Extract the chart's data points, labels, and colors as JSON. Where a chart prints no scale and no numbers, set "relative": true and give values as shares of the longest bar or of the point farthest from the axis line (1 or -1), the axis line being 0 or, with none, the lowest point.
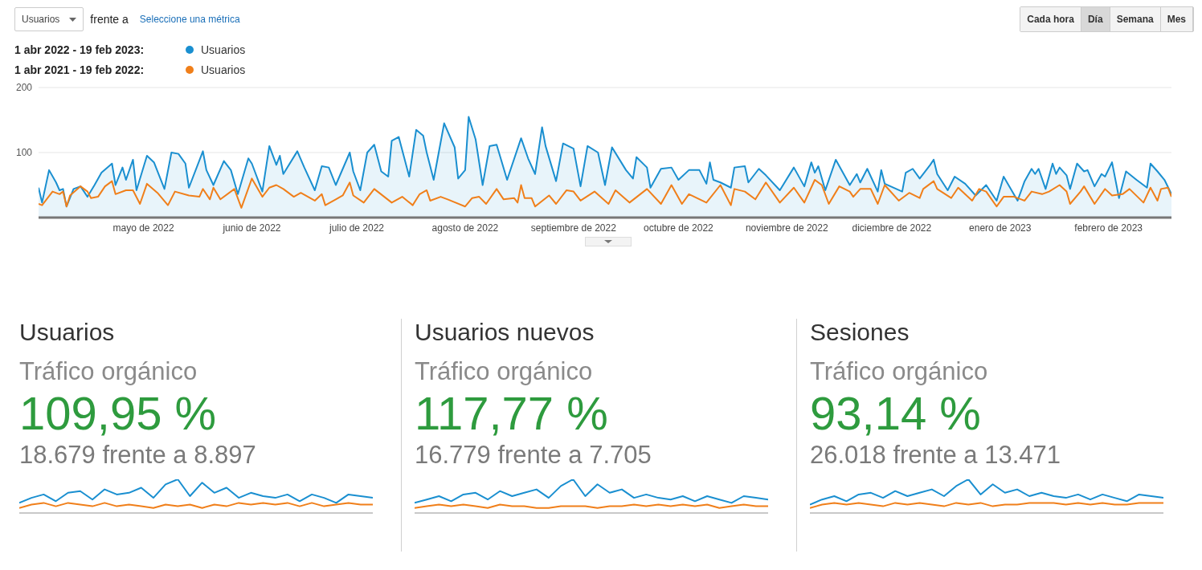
{
  "chart_data": [
    {
      "type": "line",
      "annotations": [
        "Usuarios",
        "frente a",
        "Seleccione una métrica",
        "Cada hora",
        "Día",
        "Semana",
        "Mes",
        "1 abr 2022 - 19 feb 2023:",
        "1 abr 2021 - 19 feb 2022:"
      ],
      "xlim": [
        "2022-04-01",
        "2023-02-19"
      ],
      "xticks": [
        {
          "value": "2022-05-01",
          "label": "mayo de 2022"
        },
        {
          "value": "2022-06-01",
          "label": "junio de 2022"
        },
        {
          "value": "2022-07-01",
          "label": "julio de 2022"
        },
        {
          "value": "2022-08-01",
          "label": "agosto de 2022"
        },
        {
          "value": "2022-09-01",
          "label": "septiembre de 2022"
        },
        {
          "value": "2022-10-01",
          "label": "octubre de 2022"
        },
        {
          "value": "2022-11-01",
          "label": "noviembre de 2022"
        },
        {
          "value": "2022-12-01",
          "label": "diciembre de 2022"
        },
        {
          "value": "2023-01-01",
          "label": "enero de 2023"
        },
        {
          "value": "2023-02-01",
          "label": "febrero de 2023"
        }
      ],
      "ylim": [
        0,
        200
      ],
      "yticks": [
        100,
        200
      ],
      "grid": "y",
      "legend": "top left",
      "series": [
        {
          "name": "Usuarios",
          "type": "area",
          "color": "#1a8fd0",
          "x": [
            "2022-04-01",
            "2022-04-02",
            "2022-04-04",
            "2022-04-06",
            "2022-04-07",
            "2022-04-08",
            "2022-04-09",
            "2022-04-11",
            "2022-04-13",
            "2022-04-15",
            "2022-04-17",
            "2022-04-19",
            "2022-04-22",
            "2022-04-23",
            "2022-04-25",
            "2022-04-26",
            "2022-04-28",
            "2022-04-29",
            "2022-05-02",
            "2022-05-04",
            "2022-05-07",
            "2022-05-09",
            "2022-05-11",
            "2022-05-13",
            "2022-05-14",
            "2022-05-18",
            "2022-05-19",
            "2022-05-21",
            "2022-05-24",
            "2022-05-26",
            "2022-05-28",
            "2022-05-31",
            "2022-06-01",
            "2022-06-04",
            "2022-06-06",
            "2022-06-08",
            "2022-06-09",
            "2022-06-10",
            "2022-06-14",
            "2022-06-16",
            "2022-06-19",
            "2022-06-21",
            "2022-06-23",
            "2022-06-25",
            "2022-06-29",
            "2022-06-30",
            "2022-07-02",
            "2022-07-04",
            "2022-07-06",
            "2022-07-08",
            "2022-07-10",
            "2022-07-11",
            "2022-07-13",
            "2022-07-16",
            "2022-07-18",
            "2022-07-20",
            "2022-07-21",
            "2022-07-23",
            "2022-07-26",
            "2022-07-29",
            "2022-07-30",
            "2022-08-01",
            "2022-08-02",
            "2022-08-04",
            "2022-08-06",
            "2022-08-08",
            "2022-08-10",
            "2022-08-13",
            "2022-08-17",
            "2022-08-19",
            "2022-08-21",
            "2022-08-23",
            "2022-08-24",
            "2022-08-27",
            "2022-08-29",
            "2022-09-01",
            "2022-09-03",
            "2022-09-05",
            "2022-09-08",
            "2022-09-10",
            "2022-09-12",
            "2022-09-16",
            "2022-09-18",
            "2022-09-19",
            "2022-09-22",
            "2022-09-23",
            "2022-09-26",
            "2022-09-29",
            "2022-10-01",
            "2022-10-04",
            "2022-10-07",
            "2022-10-09",
            "2022-10-10",
            "2022-10-11",
            "2022-10-13",
            "2022-10-16",
            "2022-10-17",
            "2022-10-20",
            "2022-10-21",
            "2022-10-24",
            "2022-10-26",
            "2022-10-30",
            "2022-11-03",
            "2022-11-06",
            "2022-11-08",
            "2022-11-09",
            "2022-11-10",
            "2022-11-12",
            "2022-11-15",
            "2022-11-19",
            "2022-11-21",
            "2022-11-22",
            "2022-11-24",
            "2022-11-27",
            "2022-11-28",
            "2022-11-29",
            "2022-12-04",
            "2022-12-05",
            "2022-12-07",
            "2022-12-09",
            "2022-12-12",
            "2022-12-13",
            "2022-12-14",
            "2022-12-17",
            "2022-12-19",
            "2022-12-22",
            "2022-12-25",
            "2022-12-28",
            "2022-12-31",
            "2023-01-02",
            "2023-01-06",
            "2023-01-08",
            "2023-01-10",
            "2023-01-11",
            "2023-01-12",
            "2023-01-14",
            "2023-01-16",
            "2023-01-17",
            "2023-01-18",
            "2023-01-20",
            "2023-01-21",
            "2023-01-23",
            "2023-01-25",
            "2023-01-26",
            "2023-01-28",
            "2023-01-30",
            "2023-01-31",
            "2023-02-02",
            "2023-02-04",
            "2023-02-06",
            "2023-02-09",
            "2023-02-12",
            "2023-02-13",
            "2023-02-15",
            "2023-02-17",
            "2023-02-19"
          ],
          "values": [
            46,
            23,
            73,
            54,
            42,
            44,
            17,
            44,
            48,
            32,
            50,
            69,
            83,
            50,
            77,
            58,
            89,
            42,
            95,
            85,
            44,
            100,
            98,
            83,
            46,
            102,
            73,
            50,
            87,
            73,
            36,
            91,
            83,
            40,
            110,
            81,
            95,
            67,
            102,
            77,
            42,
            79,
            77,
            50,
            100,
            71,
            42,
            100,
            112,
            71,
            63,
            118,
            124,
            63,
            135,
            126,
            100,
            58,
            145,
            108,
            60,
            73,
            155,
            120,
            50,
            110,
            112,
            58,
            122,
            91,
            67,
            139,
            110,
            56,
            114,
            106,
            48,
            110,
            100,
            50,
            108,
            73,
            60,
            93,
            77,
            46,
            75,
            77,
            58,
            73,
            73,
            52,
            85,
            58,
            54,
            46,
            77,
            79,
            54,
            75,
            65,
            42,
            77,
            48,
            85,
            69,
            79,
            42,
            89,
            50,
            67,
            54,
            75,
            40,
            73,
            52,
            40,
            69,
            75,
            60,
            81,
            89,
            67,
            42,
            63,
            52,
            34,
            50,
            26,
            63,
            26,
            56,
            75,
            67,
            75,
            44,
            83,
            67,
            77,
            65,
            44,
            83,
            71,
            73,
            48,
            67,
            63,
            85,
            30,
            71,
            58,
            46,
            83,
            71,
            58,
            36
          ]
        },
        {
          "name": "Usuarios",
          "color": "#f07f1a",
          "x": [
            "2022-04-01",
            "2022-04-02",
            "2022-04-05",
            "2022-04-07",
            "2022-04-08",
            "2022-04-09",
            "2022-04-10",
            "2022-04-13",
            "2022-04-15",
            "2022-04-16",
            "2022-04-18",
            "2022-04-20",
            "2022-04-22",
            "2022-04-23",
            "2022-04-26",
            "2022-04-28",
            "2022-04-30",
            "2022-05-02",
            "2022-05-05",
            "2022-05-08",
            "2022-05-10",
            "2022-05-14",
            "2022-05-17",
            "2022-05-18",
            "2022-05-20",
            "2022-05-21",
            "2022-05-23",
            "2022-05-27",
            "2022-05-29",
            "2022-06-01",
            "2022-06-04",
            "2022-06-06",
            "2022-06-08",
            "2022-06-10",
            "2022-06-13",
            "2022-06-15",
            "2022-06-19",
            "2022-06-21",
            "2022-06-22",
            "2022-06-25",
            "2022-06-27",
            "2022-06-29",
            "2022-06-30",
            "2022-07-03",
            "2022-07-06",
            "2022-07-11",
            "2022-07-14",
            "2022-07-17",
            "2022-07-19",
            "2022-07-21",
            "2022-07-22",
            "2022-07-25",
            "2022-07-27",
            "2022-08-01",
            "2022-08-03",
            "2022-08-05",
            "2022-08-07",
            "2022-08-10",
            "2022-08-12",
            "2022-08-15",
            "2022-08-16",
            "2022-08-17",
            "2022-08-18",
            "2022-08-20",
            "2022-08-21",
            "2022-08-25",
            "2022-08-27",
            "2022-08-30",
            "2022-09-01",
            "2022-09-03",
            "2022-09-07",
            "2022-09-11",
            "2022-09-13",
            "2022-09-17",
            "2022-09-22",
            "2022-09-26",
            "2022-09-29",
            "2022-10-02",
            "2022-10-04",
            "2022-10-09",
            "2022-10-13",
            "2022-10-16",
            "2022-10-17",
            "2022-10-20",
            "2022-10-23",
            "2022-10-26",
            "2022-10-30",
            "2022-11-03",
            "2022-11-06",
            "2022-11-09",
            "2022-11-11",
            "2022-11-13",
            "2022-11-16",
            "2022-11-19",
            "2022-11-20",
            "2022-11-22",
            "2022-11-25",
            "2022-11-27",
            "2022-11-29",
            "2022-12-03",
            "2022-12-06",
            "2022-12-09",
            "2022-12-10",
            "2022-12-13",
            "2022-12-14",
            "2022-12-18",
            "2022-12-20",
            "2022-12-24",
            "2022-12-26",
            "2022-12-28",
            "2022-12-31",
            "2023-01-02",
            "2023-01-05",
            "2023-01-08",
            "2023-01-10",
            "2023-01-13",
            "2023-01-15",
            "2023-01-18",
            "2023-01-20",
            "2023-01-21",
            "2023-01-24",
            "2023-01-25",
            "2023-01-28",
            "2023-01-31",
            "2023-02-02",
            "2023-02-05",
            "2023-02-06",
            "2023-02-07",
            "2023-02-11",
            "2023-02-13",
            "2023-02-15",
            "2023-02-16",
            "2023-02-18",
            "2023-02-19"
          ],
          "values": [
            21,
            19,
            40,
            36,
            40,
            17,
            34,
            48,
            40,
            30,
            32,
            48,
            56,
            36,
            42,
            42,
            21,
            52,
            38,
            19,
            40,
            34,
            32,
            44,
            28,
            46,
            28,
            44,
            15,
            60,
            32,
            46,
            50,
            44,
            32,
            38,
            26,
            36,
            19,
            28,
            34,
            54,
            34,
            23,
            44,
            23,
            32,
            19,
            36,
            42,
            26,
            32,
            28,
            17,
            30,
            32,
            21,
            44,
            28,
            30,
            23,
            50,
            30,
            30,
            17,
            34,
            21,
            42,
            40,
            26,
            40,
            21,
            42,
            23,
            44,
            21,
            50,
            21,
            36,
            23,
            50,
            19,
            44,
            40,
            28,
            54,
            23,
            46,
            23,
            58,
            50,
            21,
            48,
            40,
            32,
            44,
            44,
            21,
            50,
            26,
            38,
            30,
            44,
            56,
            44,
            30,
            46,
            26,
            44,
            40,
            17,
            32,
            32,
            26,
            40,
            36,
            40,
            50,
            40,
            21,
            40,
            48,
            21,
            44,
            34,
            36,
            40,
            44,
            23,
            46,
            26,
            44,
            46,
            32
          ]
        }
      ]
    },
    {
      "type": "line",
      "title": "Usuarios",
      "subtitle": "Tráfico orgánico",
      "annotations": [
        "109,95 %",
        "18.679 frente a 8.897"
      ],
      "relative": true,
      "categories": [
        null,
        null,
        null,
        null,
        null,
        null,
        null,
        null,
        null,
        null,
        null,
        null,
        null,
        null,
        null,
        null,
        null,
        null,
        null,
        null,
        null,
        null,
        null,
        null,
        null,
        null,
        null,
        null,
        null,
        null
      ],
      "series": [
        {
          "color": "#1a8fd0",
          "values": [
            0.3,
            0.45,
            0.55,
            0.35,
            0.6,
            0.65,
            0.4,
            0.7,
            0.55,
            0.6,
            0.75,
            0.45,
            0.85,
            1,
            0.5,
            0.9,
            0.6,
            0.75,
            0.45,
            0.6,
            0.5,
            0.45,
            0.55,
            0.35,
            0.55,
            0.45,
            0.3,
            0.55,
            0.5,
            0.45
          ]
        },
        {
          "color": "#f07f1a",
          "values": [
            0.15,
            0.25,
            0.3,
            0.2,
            0.3,
            0.25,
            0.2,
            0.3,
            0.2,
            0.25,
            0.2,
            0.15,
            0.25,
            0.2,
            0.25,
            0.15,
            0.25,
            0.2,
            0.3,
            0.25,
            0.3,
            0.25,
            0.3,
            0.2,
            0.3,
            0.2,
            0.25,
            0.3,
            0.25,
            0.25
          ]
        }
      ]
    },
    {
      "type": "line",
      "title": "Usuarios nuevos",
      "subtitle": "Tráfico orgánico",
      "annotations": [
        "117,77 %",
        "16.779 frente a 7.705"
      ],
      "relative": true,
      "categories": [
        null,
        null,
        null,
        null,
        null,
        null,
        null,
        null,
        null,
        null,
        null,
        null,
        null,
        null,
        null,
        null,
        null,
        null,
        null,
        null,
        null,
        null,
        null,
        null,
        null,
        null,
        null,
        null,
        null,
        null
      ],
      "series": [
        {
          "color": "#1a8fd0",
          "values": [
            0.3,
            0.4,
            0.5,
            0.35,
            0.55,
            0.6,
            0.4,
            0.65,
            0.5,
            0.6,
            0.7,
            0.45,
            0.8,
            1,
            0.5,
            0.85,
            0.6,
            0.7,
            0.45,
            0.55,
            0.45,
            0.4,
            0.5,
            0.35,
            0.5,
            0.4,
            0.3,
            0.5,
            0.45,
            0.4
          ]
        },
        {
          "color": "#f07f1a",
          "values": [
            0.15,
            0.2,
            0.25,
            0.2,
            0.25,
            0.2,
            0.15,
            0.25,
            0.2,
            0.2,
            0.15,
            0.15,
            0.2,
            0.2,
            0.2,
            0.15,
            0.2,
            0.2,
            0.25,
            0.2,
            0.25,
            0.2,
            0.25,
            0.2,
            0.25,
            0.15,
            0.2,
            0.25,
            0.2,
            0.2
          ]
        }
      ]
    },
    {
      "type": "line",
      "title": "Sesiones",
      "subtitle": "Tráfico orgánico",
      "annotations": [
        "93,14 %",
        "26.018 frente a 13.471"
      ],
      "relative": true,
      "categories": [
        null,
        null,
        null,
        null,
        null,
        null,
        null,
        null,
        null,
        null,
        null,
        null,
        null,
        null,
        null,
        null,
        null,
        null,
        null,
        null,
        null,
        null,
        null,
        null,
        null,
        null,
        null,
        null,
        null,
        null
      ],
      "series": [
        {
          "color": "#1a8fd0",
          "values": [
            0.25,
            0.4,
            0.5,
            0.35,
            0.55,
            0.6,
            0.45,
            0.65,
            0.5,
            0.6,
            0.7,
            0.5,
            0.8,
            1,
            0.55,
            0.85,
            0.6,
            0.7,
            0.5,
            0.6,
            0.5,
            0.45,
            0.55,
            0.4,
            0.55,
            0.45,
            0.35,
            0.55,
            0.5,
            0.45
          ]
        },
        {
          "color": "#f07f1a",
          "values": [
            0.15,
            0.25,
            0.3,
            0.25,
            0.3,
            0.25,
            0.2,
            0.3,
            0.25,
            0.3,
            0.25,
            0.2,
            0.3,
            0.25,
            0.3,
            0.2,
            0.25,
            0.25,
            0.3,
            0.3,
            0.3,
            0.25,
            0.3,
            0.25,
            0.3,
            0.25,
            0.25,
            0.3,
            0.3,
            0.3
          ]
        }
      ]
    }
  ]
}
